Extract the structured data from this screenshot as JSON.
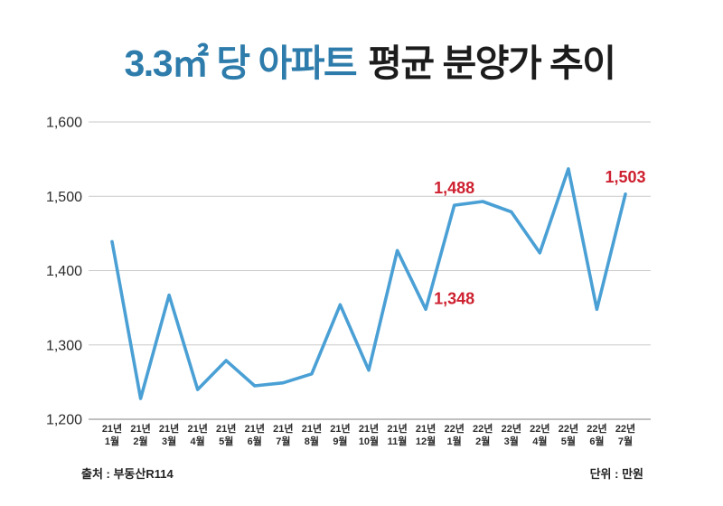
{
  "title": {
    "highlight": "3.3㎡ 당 아파트",
    "rest": "평균 분양가 추이"
  },
  "colors": {
    "line": "#4aa0d5",
    "title_highlight": "#2e7cab",
    "title_rest": "#1c1c1c",
    "data_label": "#ce2130",
    "grid": "#c9c9c9",
    "axis": "#9b9b9b",
    "tick_text": "#2b2b2b"
  },
  "chart_data": {
    "type": "line",
    "title": "3.3㎡ 당 아파트 평균 분양가 추이",
    "unit": "만원",
    "categories": [
      "21년 1월",
      "21년 2월",
      "21년 3월",
      "21년 4월",
      "21년 5월",
      "21년 6월",
      "21년 7월",
      "21년 8월",
      "21년 9월",
      "21년 10월",
      "21년 11월",
      "21년 12월",
      "22년 1월",
      "22년 2월",
      "22년 3월",
      "22년 4월",
      "22년 5월",
      "22년 6월",
      "22년 7월"
    ],
    "values": [
      1439,
      1228,
      1367,
      1240,
      1279,
      1245,
      1249,
      1261,
      1354,
      1266,
      1427,
      1348,
      1488,
      1493,
      1479,
      1424,
      1537,
      1348,
      1503
    ],
    "ylim": [
      1200,
      1600
    ],
    "yticks": [
      1200,
      1300,
      1400,
      1500,
      1600
    ],
    "grid": true,
    "legend_position": "none",
    "annotations": [
      {
        "index": 11,
        "text": "1,348",
        "position": "right"
      },
      {
        "index": 12,
        "text": "1,488",
        "position": "above"
      },
      {
        "index": 18,
        "text": "1,503",
        "position": "above"
      }
    ]
  },
  "footer": {
    "source": "출처 : 부동산R114",
    "unit": "단위 : 만원"
  }
}
